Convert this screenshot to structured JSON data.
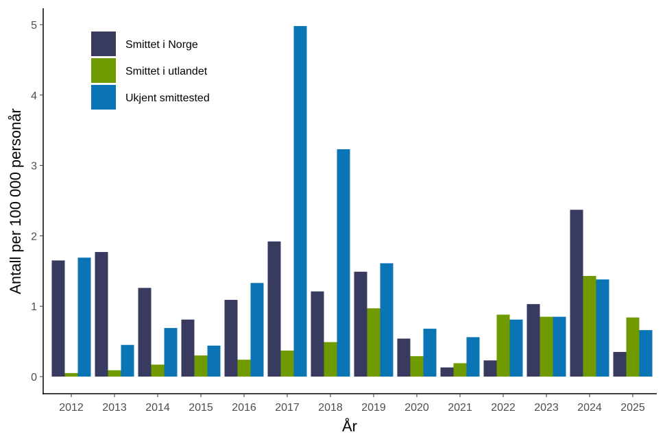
{
  "chart_data": {
    "type": "bar",
    "title": "",
    "xlabel": "År",
    "ylabel": "Antall per 100 000 personår",
    "ylim": [
      0,
      5
    ],
    "yticks": [
      0,
      1,
      2,
      3,
      4,
      5
    ],
    "grid": false,
    "legend_placement": "top-left",
    "categories": [
      "2012",
      "2013",
      "2014",
      "2015",
      "2016",
      "2017",
      "2018",
      "2019",
      "2020",
      "2021",
      "2022",
      "2023",
      "2024",
      "2025"
    ],
    "series": [
      {
        "name": "Smittet i Norge",
        "color": "#383a60",
        "values": [
          1.65,
          1.77,
          1.26,
          0.81,
          1.09,
          1.92,
          1.21,
          1.49,
          0.54,
          0.13,
          0.23,
          1.03,
          2.37,
          0.35
        ]
      },
      {
        "name": "Smittet i utlandet",
        "color": "#6f9a00",
        "values": [
          0.05,
          0.09,
          0.17,
          0.3,
          0.24,
          0.37,
          0.49,
          0.97,
          0.29,
          0.19,
          0.88,
          0.85,
          1.43,
          0.84
        ]
      },
      {
        "name": "Ukjent smittested",
        "color": "#0a74b5",
        "values": [
          1.69,
          0.45,
          0.69,
          0.44,
          1.33,
          4.98,
          3.23,
          1.61,
          0.68,
          0.56,
          0.81,
          0.85,
          1.38,
          0.66
        ]
      }
    ]
  }
}
